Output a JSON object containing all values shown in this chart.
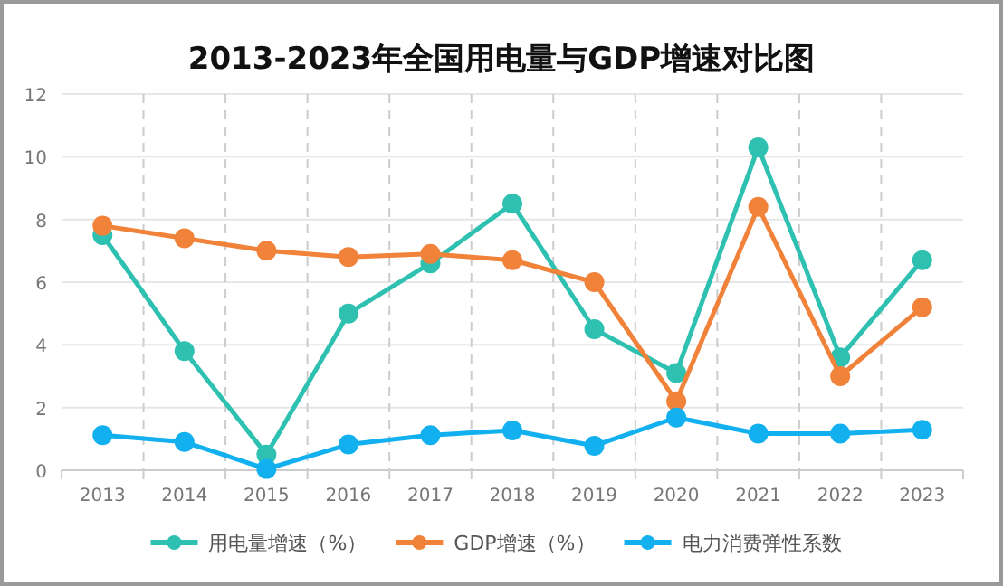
{
  "chart_data": {
    "type": "line",
    "title": "2013-2023年全国用电量与GDP增速对比图",
    "categories": [
      "2013",
      "2014",
      "2015",
      "2016",
      "2017",
      "2018",
      "2019",
      "2020",
      "2021",
      "2022",
      "2023"
    ],
    "series": [
      {
        "name": "用电量增速（%）",
        "color": "#2ec0b0",
        "values": [
          7.5,
          3.8,
          0.5,
          5.0,
          6.6,
          8.5,
          4.5,
          3.1,
          10.3,
          3.6,
          6.7
        ]
      },
      {
        "name": "GDP增速（%）",
        "color": "#f0823a",
        "values": [
          7.8,
          7.4,
          7.0,
          6.8,
          6.9,
          6.7,
          6.0,
          2.2,
          8.4,
          3.0,
          5.2
        ]
      },
      {
        "name": "电力消费弹性系数",
        "color": "#12b0ee",
        "values": [
          1.12,
          0.9,
          0.04,
          0.82,
          1.12,
          1.27,
          0.78,
          1.68,
          1.17,
          1.17,
          1.29
        ]
      }
    ],
    "ylim": [
      0,
      12
    ],
    "yticks": [
      0,
      2,
      4,
      6,
      8,
      10,
      12
    ],
    "grid": true,
    "legend": "bottom",
    "marker": "circle",
    "line_style": "solid"
  }
}
